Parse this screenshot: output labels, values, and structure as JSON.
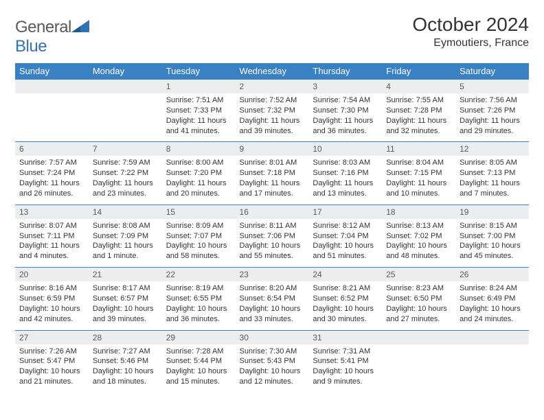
{
  "brand": {
    "part1": "General",
    "part2": "Blue"
  },
  "title": "October 2024",
  "location": "Eymoutiers, France",
  "colors": {
    "header_bg": "#3a81c4",
    "header_text": "#ffffff",
    "daynum_bg": "#ecedee",
    "daynum_text": "#5a5a5a",
    "rule": "#3a81c4",
    "body_text": "#333333",
    "logo_gray": "#5a5a5a",
    "logo_blue": "#2f72b8"
  },
  "dayNames": [
    "Sunday",
    "Monday",
    "Tuesday",
    "Wednesday",
    "Thursday",
    "Friday",
    "Saturday"
  ],
  "weeks": [
    [
      null,
      null,
      {
        "d": "1",
        "sr": "7:51 AM",
        "ss": "7:33 PM",
        "dl": "11 hours and 41 minutes."
      },
      {
        "d": "2",
        "sr": "7:52 AM",
        "ss": "7:32 PM",
        "dl": "11 hours and 39 minutes."
      },
      {
        "d": "3",
        "sr": "7:54 AM",
        "ss": "7:30 PM",
        "dl": "11 hours and 36 minutes."
      },
      {
        "d": "4",
        "sr": "7:55 AM",
        "ss": "7:28 PM",
        "dl": "11 hours and 32 minutes."
      },
      {
        "d": "5",
        "sr": "7:56 AM",
        "ss": "7:26 PM",
        "dl": "11 hours and 29 minutes."
      }
    ],
    [
      {
        "d": "6",
        "sr": "7:57 AM",
        "ss": "7:24 PM",
        "dl": "11 hours and 26 minutes."
      },
      {
        "d": "7",
        "sr": "7:59 AM",
        "ss": "7:22 PM",
        "dl": "11 hours and 23 minutes."
      },
      {
        "d": "8",
        "sr": "8:00 AM",
        "ss": "7:20 PM",
        "dl": "11 hours and 20 minutes."
      },
      {
        "d": "9",
        "sr": "8:01 AM",
        "ss": "7:18 PM",
        "dl": "11 hours and 17 minutes."
      },
      {
        "d": "10",
        "sr": "8:03 AM",
        "ss": "7:16 PM",
        "dl": "11 hours and 13 minutes."
      },
      {
        "d": "11",
        "sr": "8:04 AM",
        "ss": "7:15 PM",
        "dl": "11 hours and 10 minutes."
      },
      {
        "d": "12",
        "sr": "8:05 AM",
        "ss": "7:13 PM",
        "dl": "11 hours and 7 minutes."
      }
    ],
    [
      {
        "d": "13",
        "sr": "8:07 AM",
        "ss": "7:11 PM",
        "dl": "11 hours and 4 minutes."
      },
      {
        "d": "14",
        "sr": "8:08 AM",
        "ss": "7:09 PM",
        "dl": "11 hours and 1 minute."
      },
      {
        "d": "15",
        "sr": "8:09 AM",
        "ss": "7:07 PM",
        "dl": "10 hours and 58 minutes."
      },
      {
        "d": "16",
        "sr": "8:11 AM",
        "ss": "7:06 PM",
        "dl": "10 hours and 55 minutes."
      },
      {
        "d": "17",
        "sr": "8:12 AM",
        "ss": "7:04 PM",
        "dl": "10 hours and 51 minutes."
      },
      {
        "d": "18",
        "sr": "8:13 AM",
        "ss": "7:02 PM",
        "dl": "10 hours and 48 minutes."
      },
      {
        "d": "19",
        "sr": "8:15 AM",
        "ss": "7:00 PM",
        "dl": "10 hours and 45 minutes."
      }
    ],
    [
      {
        "d": "20",
        "sr": "8:16 AM",
        "ss": "6:59 PM",
        "dl": "10 hours and 42 minutes."
      },
      {
        "d": "21",
        "sr": "8:17 AM",
        "ss": "6:57 PM",
        "dl": "10 hours and 39 minutes."
      },
      {
        "d": "22",
        "sr": "8:19 AM",
        "ss": "6:55 PM",
        "dl": "10 hours and 36 minutes."
      },
      {
        "d": "23",
        "sr": "8:20 AM",
        "ss": "6:54 PM",
        "dl": "10 hours and 33 minutes."
      },
      {
        "d": "24",
        "sr": "8:21 AM",
        "ss": "6:52 PM",
        "dl": "10 hours and 30 minutes."
      },
      {
        "d": "25",
        "sr": "8:23 AM",
        "ss": "6:50 PM",
        "dl": "10 hours and 27 minutes."
      },
      {
        "d": "26",
        "sr": "8:24 AM",
        "ss": "6:49 PM",
        "dl": "10 hours and 24 minutes."
      }
    ],
    [
      {
        "d": "27",
        "sr": "7:26 AM",
        "ss": "5:47 PM",
        "dl": "10 hours and 21 minutes."
      },
      {
        "d": "28",
        "sr": "7:27 AM",
        "ss": "5:46 PM",
        "dl": "10 hours and 18 minutes."
      },
      {
        "d": "29",
        "sr": "7:28 AM",
        "ss": "5:44 PM",
        "dl": "10 hours and 15 minutes."
      },
      {
        "d": "30",
        "sr": "7:30 AM",
        "ss": "5:43 PM",
        "dl": "10 hours and 12 minutes."
      },
      {
        "d": "31",
        "sr": "7:31 AM",
        "ss": "5:41 PM",
        "dl": "10 hours and 9 minutes."
      },
      null,
      null
    ]
  ],
  "labels": {
    "sunrise": "Sunrise: ",
    "sunset": "Sunset: ",
    "daylight": "Daylight: "
  }
}
